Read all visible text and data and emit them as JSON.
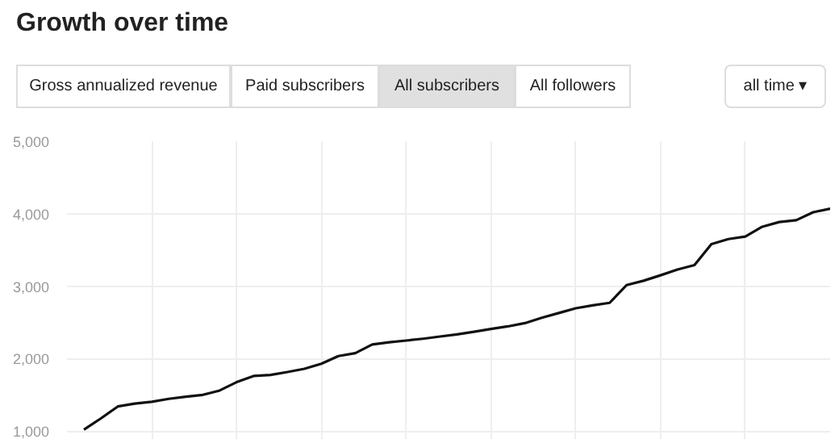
{
  "chart_data": {
    "type": "line",
    "title": "Growth over time",
    "annotations": [
      "Gross annualized revenue",
      "Paid subscribers",
      "All subscribers",
      "All followers",
      "all time ▾"
    ],
    "categories": [
      null,
      null,
      null,
      null,
      null,
      null,
      null,
      null,
      null,
      null,
      null,
      null,
      null,
      null,
      null,
      null,
      null,
      null,
      null,
      null,
      null,
      null,
      null,
      null,
      null,
      null,
      null,
      null,
      null,
      null,
      null,
      null,
      null,
      null,
      null,
      null,
      null,
      null,
      null,
      null,
      null,
      null,
      null,
      null,
      null
    ],
    "series": [
      {
        "color": "#111111",
        "values": [
          1020,
          1175,
          1340,
          1380,
          1405,
          1445,
          1475,
          1500,
          1560,
          1675,
          1760,
          1775,
          1815,
          1860,
          1930,
          2035,
          2075,
          2195,
          2225,
          2250,
          2275,
          2305,
          2335,
          2370,
          2410,
          2445,
          2490,
          2565,
          2630,
          2695,
          2735,
          2770,
          3015,
          3075,
          3150,
          3230,
          3290,
          3580,
          3650,
          3685,
          3820,
          3885,
          3910,
          4020,
          4070
        ]
      }
    ],
    "ylim": [
      880,
      5000
    ],
    "yticks": [
      {
        "value": 1000,
        "label": "1,000"
      },
      {
        "value": 2000,
        "label": "2,000"
      },
      {
        "value": 3000,
        "label": "3,000"
      },
      {
        "value": 4000,
        "label": "4,000"
      },
      {
        "value": 5000,
        "label": "5,000"
      }
    ],
    "grid": true,
    "tick_labels": "y",
    "marker": "none",
    "line_style": "solid"
  }
}
